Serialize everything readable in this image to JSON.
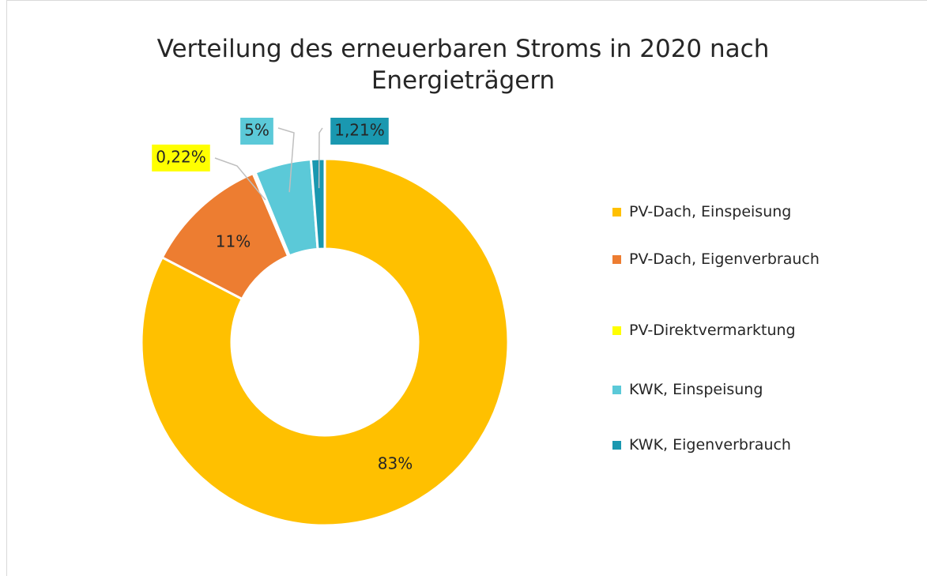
{
  "chart_data": {
    "type": "donut",
    "title": "Verteilung des erneuerbaren Stroms in 2020 nach Energieträgern",
    "categories": [
      "PV-Dach, Einspeisung",
      "PV-Dach, Eigenverbrauch",
      "PV-Direktvermarktung",
      "KWK, Einspeisung",
      "KWK, Eigenverbrauch"
    ],
    "values": [
      83,
      11,
      0.22,
      5,
      1.21
    ],
    "value_labels": [
      "83%",
      "11%",
      "0,22%",
      "5%",
      "1,21%"
    ],
    "colors": [
      "#ffc000",
      "#ed7d31",
      "#ffff00",
      "#5bc9d8",
      "#1a98b0"
    ],
    "legend": "right"
  }
}
